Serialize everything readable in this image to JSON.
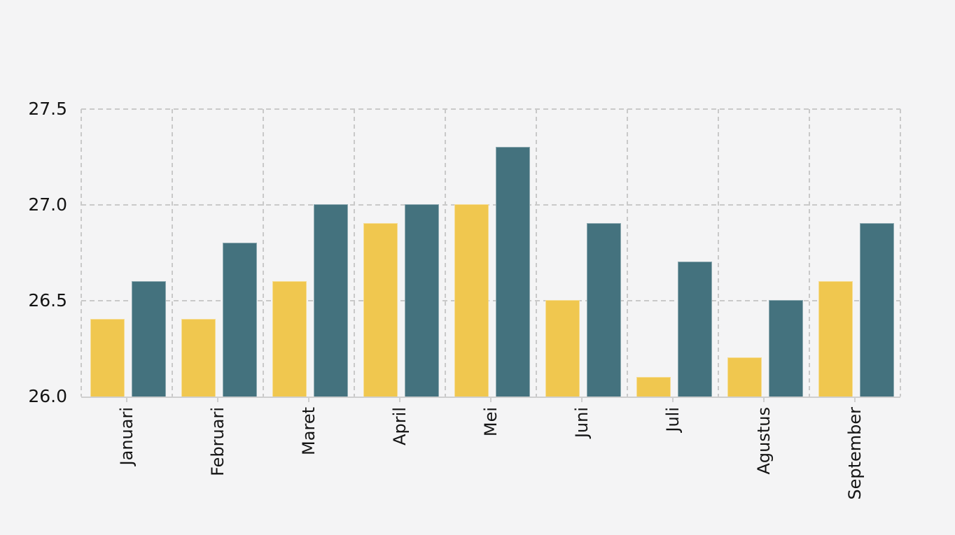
{
  "page": {
    "background": "#f4f4f5"
  },
  "chart_data": {
    "type": "bar",
    "title": "",
    "xlabel": "",
    "ylabel": "",
    "categories": [
      "Januari",
      "Februari",
      "Maret",
      "April",
      "Mei",
      "Juni",
      "Juli",
      "Agustus",
      "September"
    ],
    "series": [
      {
        "name": "yellow",
        "color": "#f0c74f",
        "values": [
          26.4,
          26.4,
          26.6,
          26.9,
          27.0,
          26.5,
          26.1,
          26.2,
          26.6
        ]
      },
      {
        "name": "teal",
        "color": "#44727e",
        "values": [
          26.6,
          26.8,
          27.0,
          27.0,
          27.3,
          26.9,
          26.7,
          26.5,
          26.9
        ]
      }
    ],
    "ylim": [
      26.0,
      27.5
    ],
    "yticks": [
      26.0,
      26.5,
      27.0,
      27.5
    ],
    "ytick_labels": [
      "26.0",
      "26.5",
      "27.0",
      "27.5"
    ],
    "xtick_rotation": 90,
    "grid": true,
    "gridline_color": "#c9c9c9",
    "axis_line_color": "#cfcfcf",
    "text_color": "#141414",
    "legend": false
  }
}
